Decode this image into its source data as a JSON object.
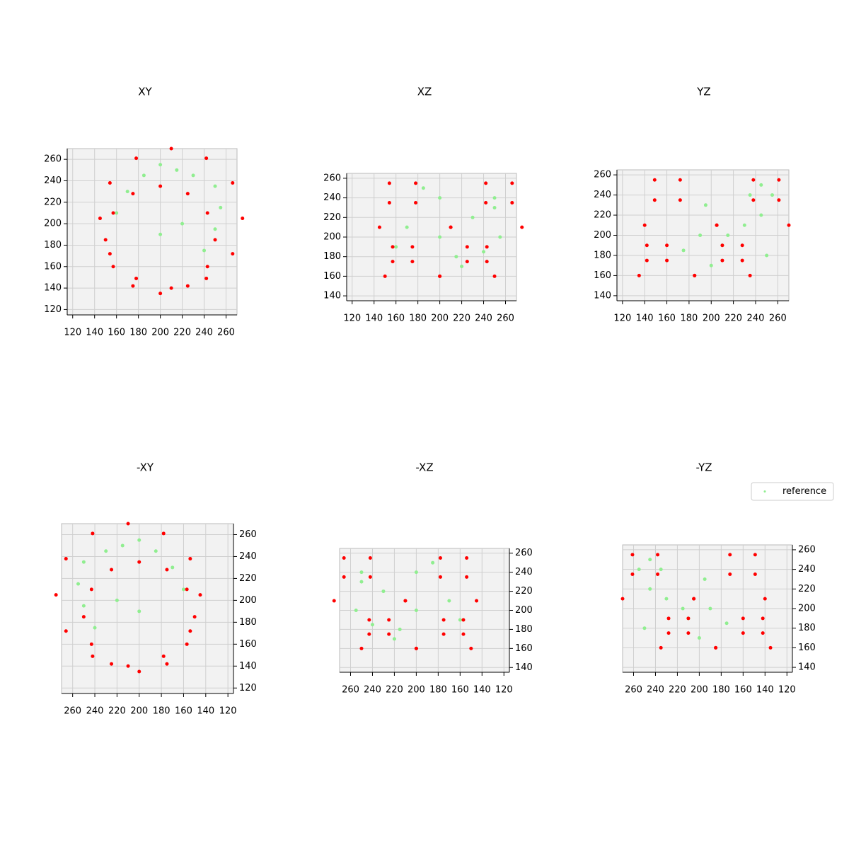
{
  "chart_data": {
    "type": "scatter3d",
    "xlim": [
      115,
      270
    ],
    "ylim": [
      115,
      270
    ],
    "zlim": [
      135,
      265
    ],
    "xticks": [
      120,
      140,
      160,
      180,
      200,
      220,
      240,
      260
    ],
    "yticks": [
      120,
      140,
      160,
      180,
      200,
      220,
      240,
      260
    ],
    "zticks": [
      140,
      160,
      180,
      200,
      220,
      240,
      260
    ],
    "grid": true,
    "legend": "upper right",
    "views": [
      {
        "title": "XY",
        "axes": [
          "x",
          "y"
        ],
        "reversed": false
      },
      {
        "title": "XZ",
        "axes": [
          "x",
          "z"
        ],
        "reversed": false
      },
      {
        "title": "YZ",
        "axes": [
          "y",
          "z"
        ],
        "reversed": false
      },
      {
        "title": "-XY",
        "axes": [
          "x",
          "y"
        ],
        "reversed": true
      },
      {
        "title": "-XZ",
        "axes": [
          "x",
          "z"
        ],
        "reversed": true
      },
      {
        "title": "-YZ",
        "axes": [
          "y",
          "z"
        ],
        "reversed": true
      }
    ],
    "series": [
      {
        "name": "reference",
        "color": "#90ee90",
        "x": [
          230,
          250,
          255,
          250,
          240,
          185,
          170,
          160,
          200,
          215,
          200,
          220
        ],
        "y": [
          245,
          235,
          215,
          195,
          175,
          245,
          230,
          210,
          255,
          250,
          190,
          200
        ],
        "z": [
          220,
          240,
          200,
          230,
          185,
          250,
          210,
          190,
          240,
          180,
          200,
          170
        ]
      },
      {
        "color": "#ff0000",
        "x": [
          250,
          243,
          225,
          200,
          175,
          157,
          150,
          157,
          175,
          200,
          225,
          243,
          275,
          266,
          242,
          210,
          178,
          154,
          145,
          154,
          178,
          210,
          242,
          266
        ],
        "y": [
          185,
          210,
          228,
          235,
          228,
          210,
          185,
          160,
          142,
          135,
          142,
          160,
          205,
          238,
          261,
          270,
          261,
          238,
          205,
          172,
          149,
          140,
          149,
          172
        ],
        "z": [
          160,
          175,
          190,
          160,
          175,
          190,
          160,
          175,
          190,
          160,
          175,
          190,
          210,
          235,
          255,
          210,
          235,
          255,
          210,
          235,
          255,
          210,
          235,
          255
        ]
      }
    ]
  }
}
